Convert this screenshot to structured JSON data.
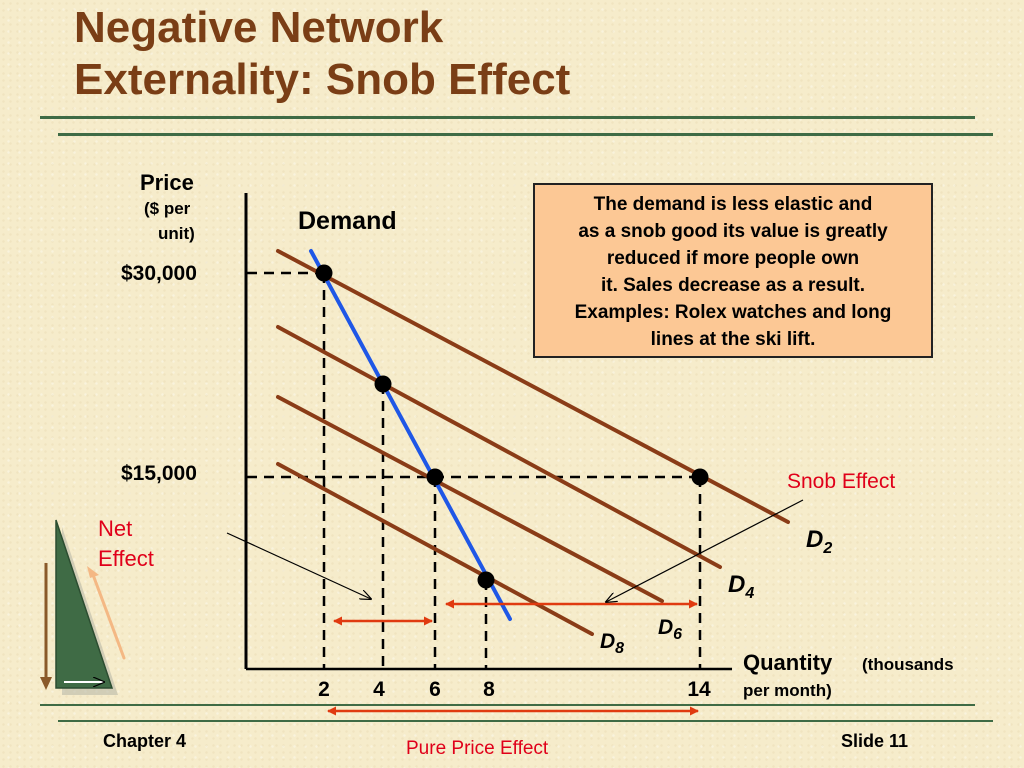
{
  "slide": {
    "title_line1": "Negative Network",
    "title_line2": "Externality: Snob Effect",
    "footer_left": "Chapter 4",
    "footer_right": "Slide 11",
    "colors": {
      "title": "#7a3e16",
      "rule": "#3f6b45",
      "demand_curve": "#1f57e6",
      "d_curves": "#8a3c17",
      "arrows": "#e03a10",
      "callout_bg": "#fcc895"
    }
  },
  "labels": {
    "price": "Price",
    "price_unit_1": "($ per",
    "price_unit_2": "unit)",
    "demand": "Demand",
    "quantity": "Quantity",
    "quantity_unit_1": "(thousands",
    "quantity_unit_2": "per month)",
    "snob_effect": "Snob Effect",
    "net_effect_1": "Net",
    "net_effect_2": "Effect",
    "pure_price_effect": "Pure Price Effect"
  },
  "callout": {
    "lines": [
      "The demand is less elastic and",
      "as a snob good its value is greatly",
      "reduced if more people own",
      "it. Sales decrease as a result.",
      "Examples: Rolex watches and long",
      "lines at the ski lift."
    ]
  },
  "chart_data": {
    "type": "line",
    "ylabel": "Price ($ per unit)",
    "xlabel": "Quantity (thousands per month)",
    "x_ticks": [
      2,
      4,
      6,
      8,
      14
    ],
    "y_ticks": [
      "$30,000",
      "$15,000"
    ],
    "y_values": [
      30000,
      15000
    ],
    "series": [
      {
        "name": "Demand",
        "x": [
          2,
          4,
          6,
          8
        ],
        "y": [
          30000,
          22500,
          15000,
          7500
        ]
      },
      {
        "name": "D2",
        "label_letter": "D",
        "label_sub": "2",
        "x": [
          2,
          14
        ],
        "y": [
          30000,
          15000
        ]
      },
      {
        "name": "D4",
        "label_letter": "D",
        "label_sub": "4",
        "x": [
          4
        ],
        "y": [
          22500
        ]
      },
      {
        "name": "D6",
        "label_letter": "D",
        "label_sub": "6",
        "x": [
          6
        ],
        "y": [
          15000
        ]
      },
      {
        "name": "D8",
        "label_letter": "D",
        "label_sub": "8",
        "x": [
          8
        ],
        "y": [
          7500
        ]
      }
    ],
    "annotations": [
      "Snob Effect",
      "Net Effect",
      "Pure Price Effect"
    ]
  }
}
